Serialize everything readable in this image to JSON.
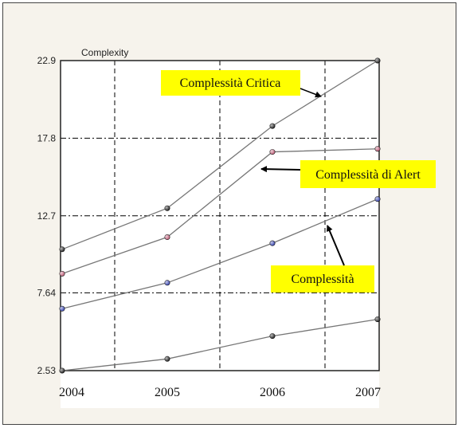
{
  "chart_data": {
    "type": "line",
    "ylabel": "Complexity",
    "x": [
      "2004",
      "2005",
      "2006",
      "2007"
    ],
    "yticks": [
      "2.53",
      "7.64",
      "12.7",
      "17.8",
      "22.9"
    ],
    "ylim": [
      2.53,
      22.9
    ],
    "grid": true,
    "series": [
      {
        "values": [
          10.5,
          13.2,
          18.6,
          22.9
        ],
        "marker_color": "#222222"
      },
      {
        "values": [
          8.9,
          11.3,
          16.9,
          17.1
        ],
        "marker_color": "#c0607a"
      },
      {
        "values": [
          6.6,
          8.3,
          10.9,
          13.8
        ],
        "marker_color": "#3a47b0"
      },
      {
        "values": [
          2.53,
          3.3,
          4.8,
          5.9
        ],
        "marker_color": "#222222"
      }
    ],
    "annotations": [
      "Complessità Critica",
      "Complessità di Alert",
      "Complessità"
    ],
    "colors": {
      "annotation_box": "#ffff00",
      "line": "#777777",
      "grid": "#000000"
    }
  }
}
